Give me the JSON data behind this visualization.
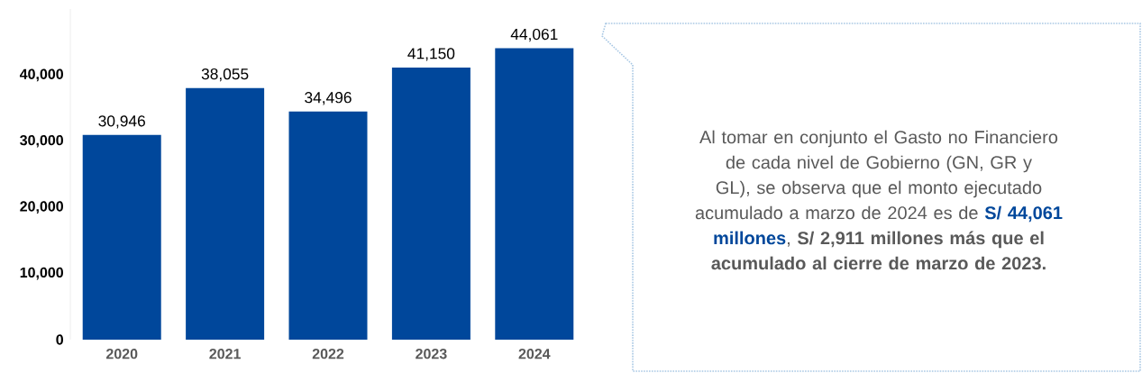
{
  "chart_data": {
    "type": "bar",
    "categories": [
      "2020",
      "2021",
      "2022",
      "2023",
      "2024"
    ],
    "values": [
      30946,
      38055,
      34496,
      41150,
      44061
    ],
    "color": "#00479b",
    "ylim": [
      0,
      50000
    ],
    "yticks": [
      0,
      {
        "value": 10000,
        "label": "10,000"
      },
      {
        "value": 20000,
        "label": "20,000"
      },
      {
        "value": 30000,
        "label": "30,000"
      },
      {
        "value": 40000,
        "label": "40,000"
      }
    ],
    "value_labels": [
      "30,946",
      "38,055",
      "34,496",
      "41,150",
      "44,061"
    ],
    "annotations": [
      "Al tomar en conjunto el Gasto no Financiero de cada nivel de Gobierno (GN, GR y GL), se observa que el monto ejecutado acumulado a marzo de 2024 es de",
      "S/ 44,061 millones",
      ", **S/ 2,911 millones más que el acumulado al cierre de marzo de 2023.**"
    ]
  }
}
